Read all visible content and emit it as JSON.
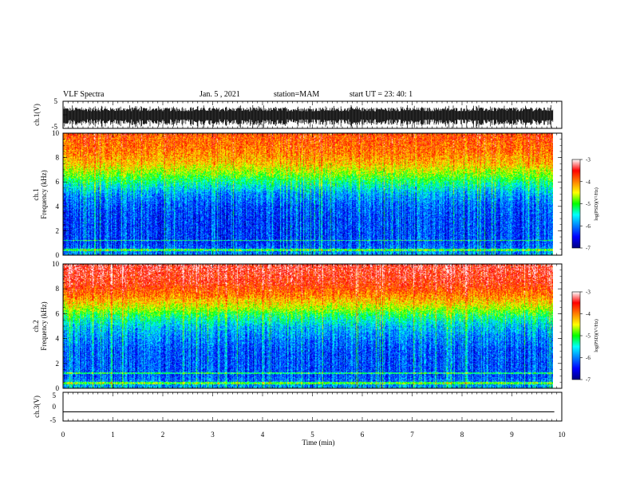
{
  "header": {
    "title": "VLF Spectra",
    "date": "Jan. 5 , 2021",
    "station": "station=MAM",
    "start": "start UT =  23: 40: 1"
  },
  "chart_data": [
    {
      "type": "line",
      "name": "ch1-waveform",
      "ylabel": "ch.1(V)",
      "ylim": [
        -5,
        5
      ],
      "yticks": [
        "5",
        "-5"
      ],
      "xlim": [
        0,
        10
      ]
    },
    {
      "type": "heatmap",
      "name": "ch1-spectrogram",
      "ylabel_line1": "ch.1",
      "ylabel_line2": "Frequency (kHz)",
      "ylim": [
        0,
        10
      ],
      "yticks": [
        "0",
        "2",
        "4",
        "6",
        "8",
        "10"
      ],
      "xlim": [
        0,
        9.85
      ],
      "colorbar": {
        "label": "log(PSD)(V²/Hz)",
        "range": [
          -7,
          -3
        ],
        "ticks": [
          "-3",
          "-4",
          "-5",
          "-6",
          "-7"
        ]
      },
      "approx_profile": {
        "freq_khz": [
          0,
          1,
          2,
          3,
          4,
          5,
          5.8,
          6.5,
          7.5,
          8.5,
          10
        ],
        "log_psd": [
          -5.9,
          -6.3,
          -6.3,
          -6.3,
          -6.2,
          -5.9,
          -5.4,
          -4.9,
          -4.3,
          -4.0,
          -3.8
        ]
      }
    },
    {
      "type": "heatmap",
      "name": "ch2-spectrogram",
      "ylabel_line1": "ch.2",
      "ylabel_line2": "Frequency (kHz)",
      "ylim": [
        0,
        10
      ],
      "yticks": [
        "0",
        "2",
        "4",
        "6",
        "8",
        "10"
      ],
      "xlim": [
        0,
        9.85
      ],
      "colorbar": {
        "label": "log(PSD)(V²/Hz)",
        "range": [
          -7,
          -3
        ],
        "ticks": [
          "-3",
          "-4",
          "-5",
          "-6",
          "-7"
        ]
      },
      "approx_profile": {
        "freq_khz": [
          0,
          1,
          2,
          3,
          4,
          5,
          5.8,
          6.5,
          7.5,
          8.5,
          10
        ],
        "log_psd": [
          -5.8,
          -6.2,
          -6.2,
          -6.2,
          -6.0,
          -5.7,
          -5.2,
          -4.6,
          -4.0,
          -3.6,
          -3.4
        ]
      }
    },
    {
      "type": "line",
      "name": "ch3-waveform",
      "ylabel": "ch.3(V)",
      "ylim": [
        -5,
        5
      ],
      "yticks": [
        "5",
        "0",
        "-5"
      ],
      "x": [
        0,
        9.85
      ],
      "y": [
        -1.8,
        -1.8
      ]
    }
  ],
  "xaxis": {
    "label": "Time (min)",
    "ticks": [
      "0",
      "1",
      "2",
      "3",
      "4",
      "5",
      "6",
      "7",
      "8",
      "9",
      "10"
    ],
    "range": [
      0,
      10
    ]
  }
}
